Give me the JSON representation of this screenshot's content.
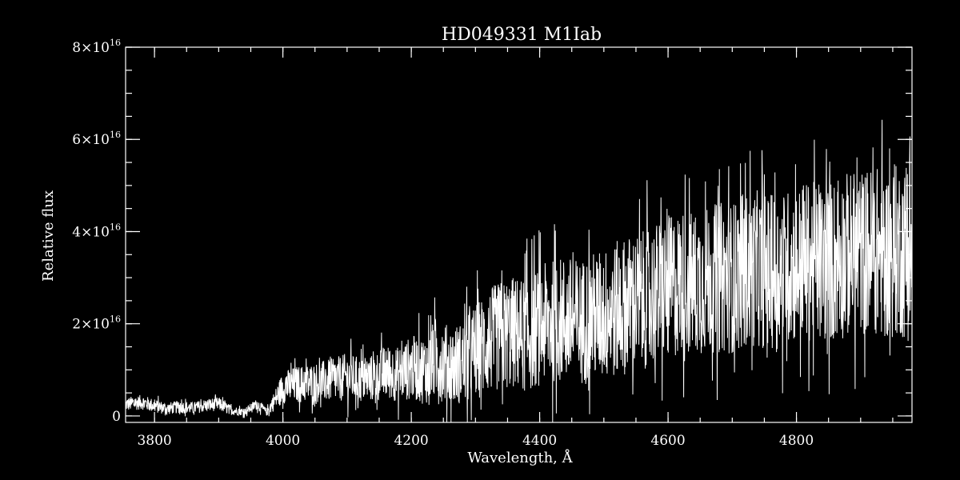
{
  "chart_data": {
    "type": "line",
    "title": "HD049331  M1Iab",
    "xlabel": "Wavelength, Å",
    "ylabel": "Relative flux",
    "xlim": [
      3755,
      4980
    ],
    "ylim": [
      -1400000000000000.0,
      8e+16
    ],
    "x_ticks": [
      {
        "value": 3800,
        "label": "3800"
      },
      {
        "value": 4000,
        "label": "4000"
      },
      {
        "value": 4200,
        "label": "4200"
      },
      {
        "value": 4400,
        "label": "4400"
      },
      {
        "value": 4600,
        "label": "4600"
      },
      {
        "value": 4800,
        "label": "4800"
      }
    ],
    "x_minor_step": 50,
    "y_ticks": [
      {
        "value": 0,
        "mantissa": "0",
        "exp": ""
      },
      {
        "value": 2e+16,
        "mantissa": "2×10",
        "exp": "16"
      },
      {
        "value": 4e+16,
        "mantissa": "4×10",
        "exp": "16"
      },
      {
        "value": 6e+16,
        "mantissa": "6×10",
        "exp": "16"
      },
      {
        "value": 8e+16,
        "mantissa": "8×10",
        "exp": "16"
      }
    ],
    "y_minor_step": 5000000000000000.0,
    "grid": false,
    "series": [
      {
        "x": [
          3755,
          3780,
          3800,
          3820,
          3840,
          3860,
          3880,
          3900,
          3920,
          3940,
          3960,
          3975,
          3990,
          4000,
          4020,
          4040,
          4060,
          4080,
          4100,
          4120,
          4140,
          4160,
          4180,
          4200,
          4220,
          4240,
          4260,
          4280,
          4300,
          4320,
          4340,
          4360,
          4380,
          4400,
          4420,
          4440,
          4460,
          4480,
          4500,
          4520,
          4540,
          4560,
          4580,
          4600,
          4620,
          4640,
          4660,
          4680,
          4700,
          4720,
          4740,
          4760,
          4780,
          4800,
          4820,
          4840,
          4860,
          4880,
          4900,
          4920,
          4940,
          4960,
          4980
        ],
        "y": [
          2500000000000000.0,
          3000000000000000.0,
          2200000000000000.0,
          1600000000000000.0,
          2000000000000000.0,
          1700000000000000.0,
          2300000000000000.0,
          2600000000000000.0,
          1200000000000000.0,
          900000000000000.0,
          2600000000000000.0,
          800000000000000.0,
          4000000000000000.0,
          6200000000000000.0,
          6800000000000000.0,
          7100000000000000.0,
          7400000000000000.0,
          7800000000000000.0,
          8500000000000000.0,
          7800000000000000.0,
          8200000000000000.0,
          9500000000000000.0,
          9000000000000000.0,
          1.05e+16,
          1e+16,
          1.25e+16,
          1.1e+16,
          1.15e+16,
          1.4e+16,
          1.6e+16,
          1.75e+16,
          1.8e+16,
          1.75e+16,
          1.95e+16,
          2.05e+16,
          2.1e+16,
          2e+16,
          2.15e+16,
          2.2e+16,
          2.3e+16,
          2.45e+16,
          2.5e+16,
          2.65e+16,
          2.75e+16,
          2.9e+16,
          2.85e+16,
          2.95e+16,
          3e+16,
          3e+16,
          3.15e+16,
          3.2e+16,
          3.1e+16,
          3.2e+16,
          3.3e+16,
          3.35e+16,
          3.3e+16,
          3.4e+16,
          3.5e+16,
          3.55e+16,
          3.6e+16,
          3.5e+16,
          3.6e+16,
          3.45e+16
        ],
        "amp": [
          1500000000000000.0,
          1600000000000000.0,
          1500000000000000.0,
          1300000000000000.0,
          1400000000000000.0,
          1300000000000000.0,
          1400000000000000.0,
          1500000000000000.0,
          1000000000000000.0,
          800000000000000.0,
          1200000000000000.0,
          800000000000000.0,
          2500000000000000.0,
          3500000000000000.0,
          4000000000000000.0,
          4200000000000000.0,
          4500000000000000.0,
          4800000000000000.0,
          5200000000000000.0,
          5000000000000000.0,
          5200000000000000.0,
          6000000000000000.0,
          6000000000000000.0,
          7000000000000000.0,
          7500000000000000.0,
          9000000000000000.0,
          8500000000000000.0,
          9000000000000000.0,
          1.05e+16,
          1.15e+16,
          1.2e+16,
          1.25e+16,
          1.25e+16,
          1.3e+16,
          1.35e+16,
          1.4e+16,
          1.4e+16,
          1.4e+16,
          1.45e+16,
          1.5e+16,
          1.5e+16,
          1.5e+16,
          1.55e+16,
          1.6e+16,
          1.6e+16,
          1.6e+16,
          1.6e+16,
          1.65e+16,
          1.65e+16,
          1.7e+16,
          1.7e+16,
          1.7e+16,
          1.7e+16,
          1.7e+16,
          1.75e+16,
          1.75e+16,
          1.8e+16,
          1.8e+16,
          1.8e+16,
          1.85e+16,
          1.85e+16,
          1.9e+16,
          1.9e+16
        ]
      }
    ]
  }
}
